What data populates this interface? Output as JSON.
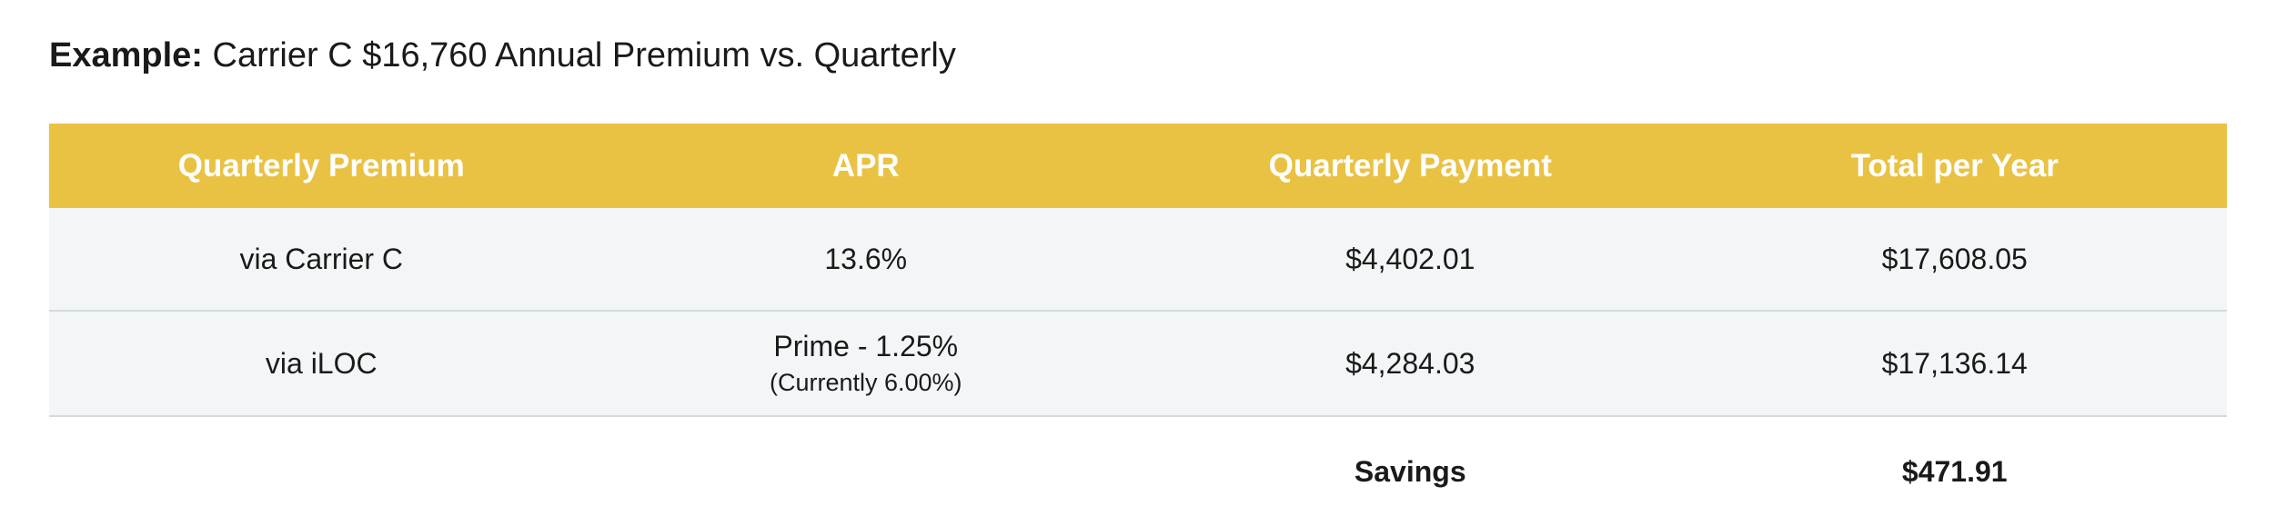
{
  "title": {
    "label": "Example:",
    "text": "Carrier C $16,760 Annual Premium vs. Quarterly"
  },
  "table": {
    "headers": [
      "Quarterly Premium",
      "APR",
      "Quarterly Payment",
      "Total per Year"
    ],
    "rows": [
      [
        {
          "main": "via Carrier C"
        },
        {
          "main": "13.6%"
        },
        {
          "main": "$4,402.01"
        },
        {
          "main": "$17,608.05"
        }
      ],
      [
        {
          "main": "via iLOC"
        },
        {
          "main": "Prime - 1.25%",
          "note": "(Currently 6.00%)"
        },
        {
          "main": "$4,284.03"
        },
        {
          "main": "$17,136.14"
        }
      ]
    ],
    "footer": {
      "label": "Savings",
      "value": "$471.91"
    }
  }
}
